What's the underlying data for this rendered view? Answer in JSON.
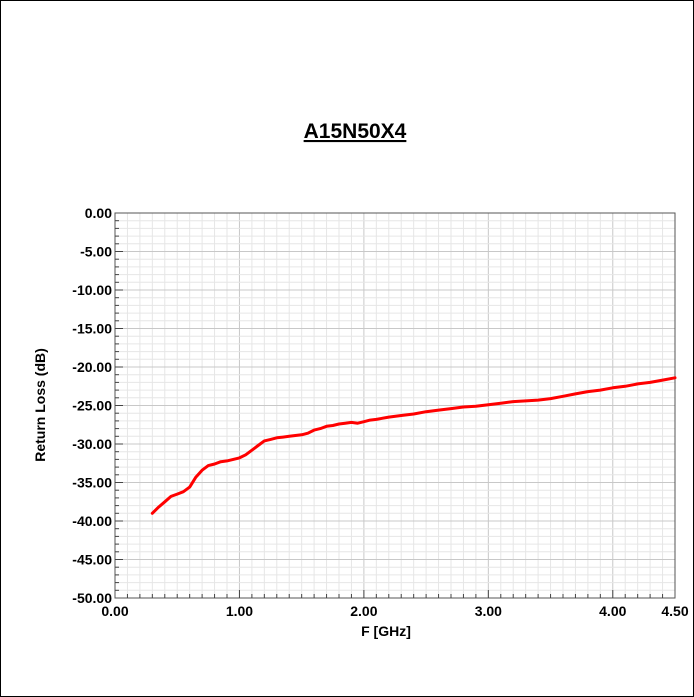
{
  "chart_data": {
    "type": "line",
    "title": "A15N50X4",
    "xlabel": "F [GHz]",
    "ylabel": "Return Loss (dB)",
    "xlim": [
      0,
      4.5
    ],
    "ylim": [
      -50,
      0
    ],
    "x_ticks": [
      "0.00",
      "1.00",
      "2.00",
      "3.00",
      "4.00",
      "4.50"
    ],
    "y_ticks": [
      "0.00",
      "-5.00",
      "-10.00",
      "-15.00",
      "-20.00",
      "-25.00",
      "-30.00",
      "-35.00",
      "-40.00",
      "-45.00",
      "-50.00"
    ],
    "grid": true,
    "series": [
      {
        "color": "#ff0000",
        "x": [
          0.3,
          0.35,
          0.4,
          0.45,
          0.5,
          0.55,
          0.6,
          0.65,
          0.7,
          0.75,
          0.8,
          0.85,
          0.9,
          0.95,
          1.0,
          1.05,
          1.1,
          1.15,
          1.2,
          1.25,
          1.3,
          1.35,
          1.4,
          1.45,
          1.5,
          1.55,
          1.6,
          1.65,
          1.7,
          1.75,
          1.8,
          1.85,
          1.9,
          1.95,
          2.0,
          2.05,
          2.1,
          2.2,
          2.3,
          2.4,
          2.5,
          2.6,
          2.7,
          2.8,
          2.9,
          3.0,
          3.1,
          3.2,
          3.3,
          3.4,
          3.5,
          3.6,
          3.7,
          3.8,
          3.9,
          4.0,
          4.1,
          4.2,
          4.3,
          4.4,
          4.5
        ],
        "y": [
          -39.0,
          -38.2,
          -37.5,
          -36.8,
          -36.5,
          -36.2,
          -35.6,
          -34.3,
          -33.4,
          -32.8,
          -32.6,
          -32.3,
          -32.2,
          -32.0,
          -31.8,
          -31.4,
          -30.8,
          -30.2,
          -29.6,
          -29.4,
          -29.2,
          -29.1,
          -29.0,
          -28.9,
          -28.8,
          -28.6,
          -28.2,
          -28.0,
          -27.7,
          -27.6,
          -27.4,
          -27.3,
          -27.2,
          -27.3,
          -27.1,
          -26.9,
          -26.8,
          -26.5,
          -26.3,
          -26.1,
          -25.8,
          -25.6,
          -25.4,
          -25.2,
          -25.1,
          -24.9,
          -24.7,
          -24.5,
          -24.4,
          -24.3,
          -24.1,
          -23.8,
          -23.5,
          -23.2,
          -23.0,
          -22.7,
          -22.5,
          -22.2,
          -22.0,
          -21.7,
          -21.4
        ]
      }
    ]
  }
}
